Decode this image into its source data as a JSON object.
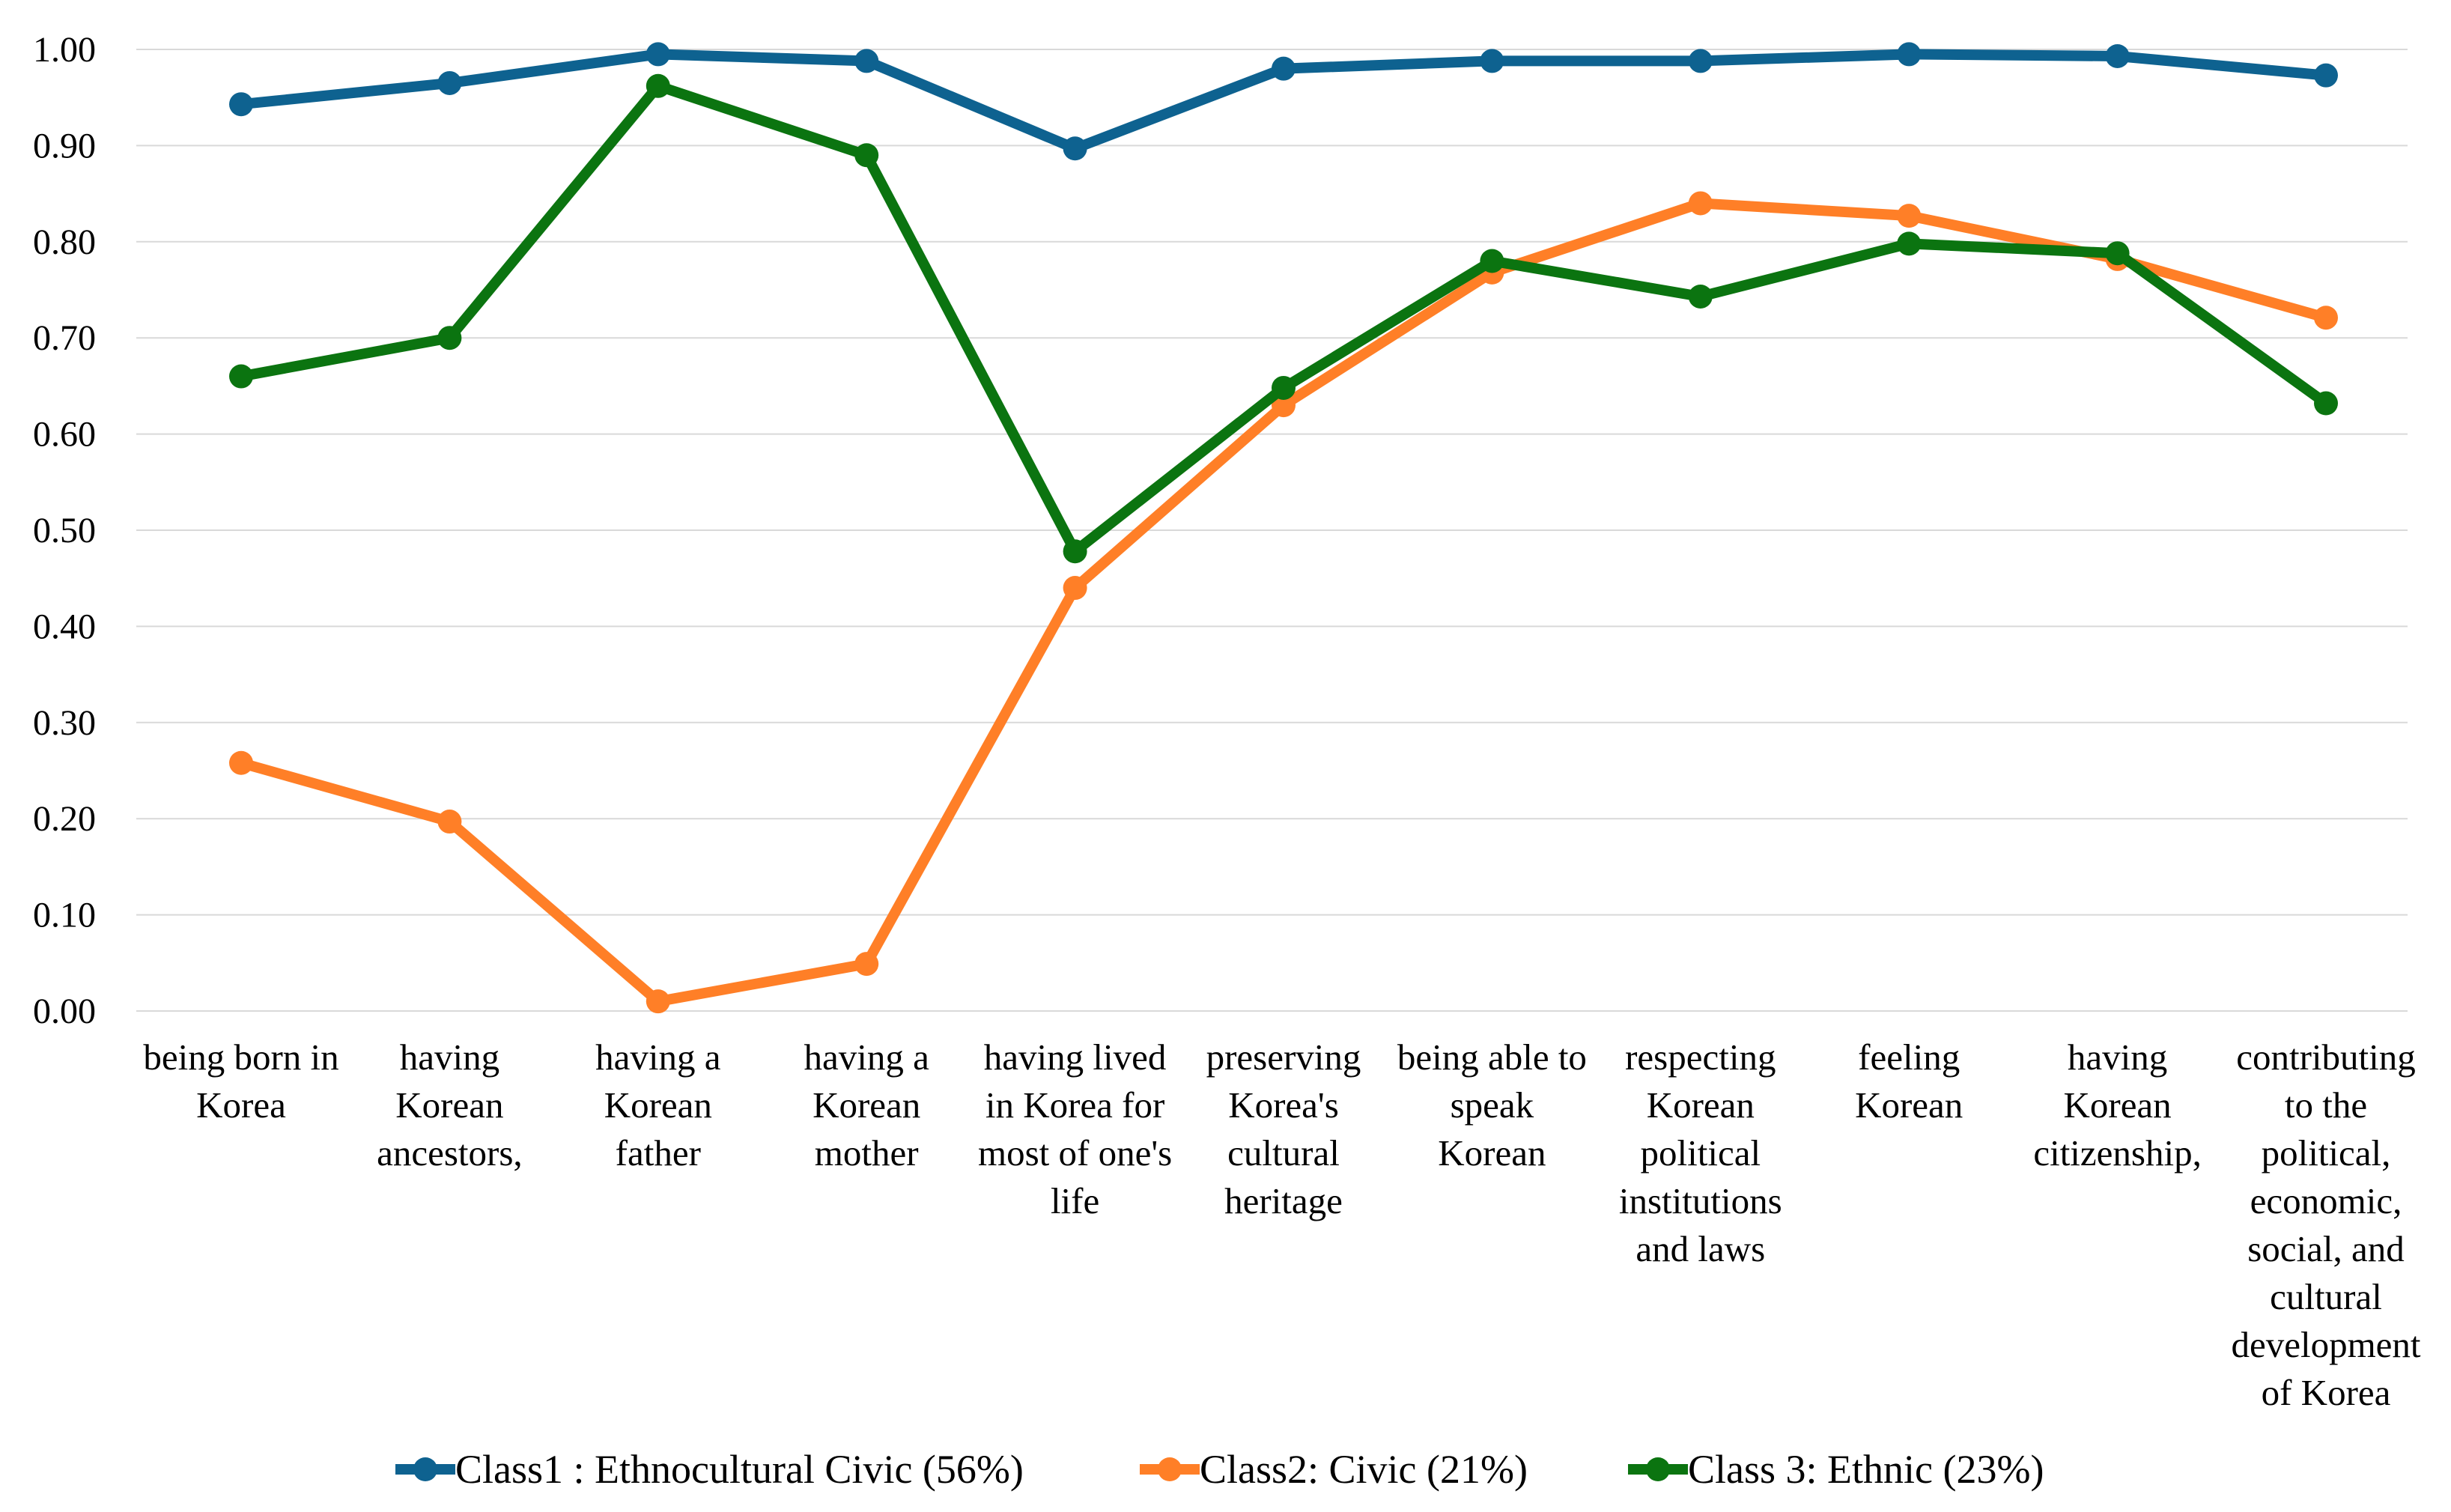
{
  "chart_data": {
    "type": "line",
    "title": "",
    "xlabel": "",
    "ylabel": "",
    "ylim": [
      0,
      1
    ],
    "yticks": [
      "0.00",
      "0.10",
      "0.20",
      "0.30",
      "0.40",
      "0.50",
      "0.60",
      "0.70",
      "0.80",
      "0.90",
      "1.00"
    ],
    "ytick_values": [
      0,
      0.1,
      0.2,
      0.3,
      0.4,
      0.5,
      0.6,
      0.7,
      0.8,
      0.9,
      1.0
    ],
    "grid": true,
    "legend_position": "bottom",
    "categories": [
      [
        "being born in",
        "Korea"
      ],
      [
        "having",
        "Korean",
        "ancestors,"
      ],
      [
        "having a",
        "Korean",
        "father"
      ],
      [
        "having a",
        "Korean",
        "mother"
      ],
      [
        "having lived",
        "in Korea for",
        "most of one's",
        "life"
      ],
      [
        "preserving",
        "Korea's",
        "cultural",
        "heritage"
      ],
      [
        "being able to",
        "speak",
        "Korean"
      ],
      [
        "respecting",
        "Korean",
        "political",
        "institutions",
        "and laws"
      ],
      [
        "feeling",
        "Korean"
      ],
      [
        "having",
        "Korean",
        "citizenship,"
      ],
      [
        "contributing",
        "to the",
        "political,",
        "economic,",
        "social, and",
        "cultural",
        "development",
        "of Korea"
      ]
    ],
    "series": [
      {
        "name": "Class1 : Ethnocultural Civic (56%)",
        "color": "#0e6290",
        "values": [
          0.943,
          0.965,
          0.995,
          0.988,
          0.897,
          0.98,
          0.988,
          0.988,
          0.995,
          0.993,
          0.973
        ]
      },
      {
        "name": "Class2: Civic (21%)",
        "color": "#ff7f27",
        "values": [
          0.258,
          0.197,
          0.01,
          0.049,
          0.44,
          0.63,
          0.768,
          0.84,
          0.827,
          0.782,
          0.721
        ]
      },
      {
        "name": "Class 3: Ethnic (23%)",
        "color": "#0b7410",
        "values": [
          0.66,
          0.7,
          0.962,
          0.89,
          0.478,
          0.648,
          0.78,
          0.743,
          0.798,
          0.788,
          0.632
        ]
      }
    ]
  }
}
